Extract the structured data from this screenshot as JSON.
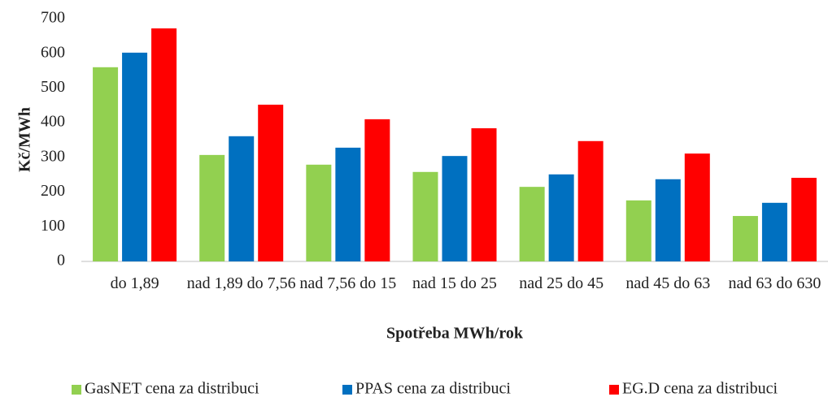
{
  "chart_data": {
    "type": "bar",
    "categories": [
      "do 1,89",
      "nad 1,89 do 7,56",
      "nad 7,56 do 15",
      "nad 15 do 25",
      "nad 25 do 45",
      "nad 45 do 63",
      "nad 63 do 630"
    ],
    "series": [
      {
        "name": "GasNET cena za distribuci",
        "color": "#92d050",
        "values": [
          560,
          307,
          279,
          258,
          215,
          176,
          131
        ]
      },
      {
        "name": "PPAS cena za distribuci",
        "color": "#0070c0",
        "values": [
          602,
          361,
          328,
          304,
          251,
          237,
          169
        ]
      },
      {
        "name": "EG.D cena za distribuci",
        "color": "#ff0000",
        "values": [
          672,
          452,
          410,
          384,
          347,
          311,
          241
        ]
      }
    ],
    "y_label": "Kč/MWh",
    "x_label": "Spotřeba MWh/rok",
    "ylim": [
      0,
      700
    ],
    "yticks": [
      0,
      100,
      200,
      300,
      400,
      500,
      600,
      700
    ],
    "legend": "bottom"
  }
}
